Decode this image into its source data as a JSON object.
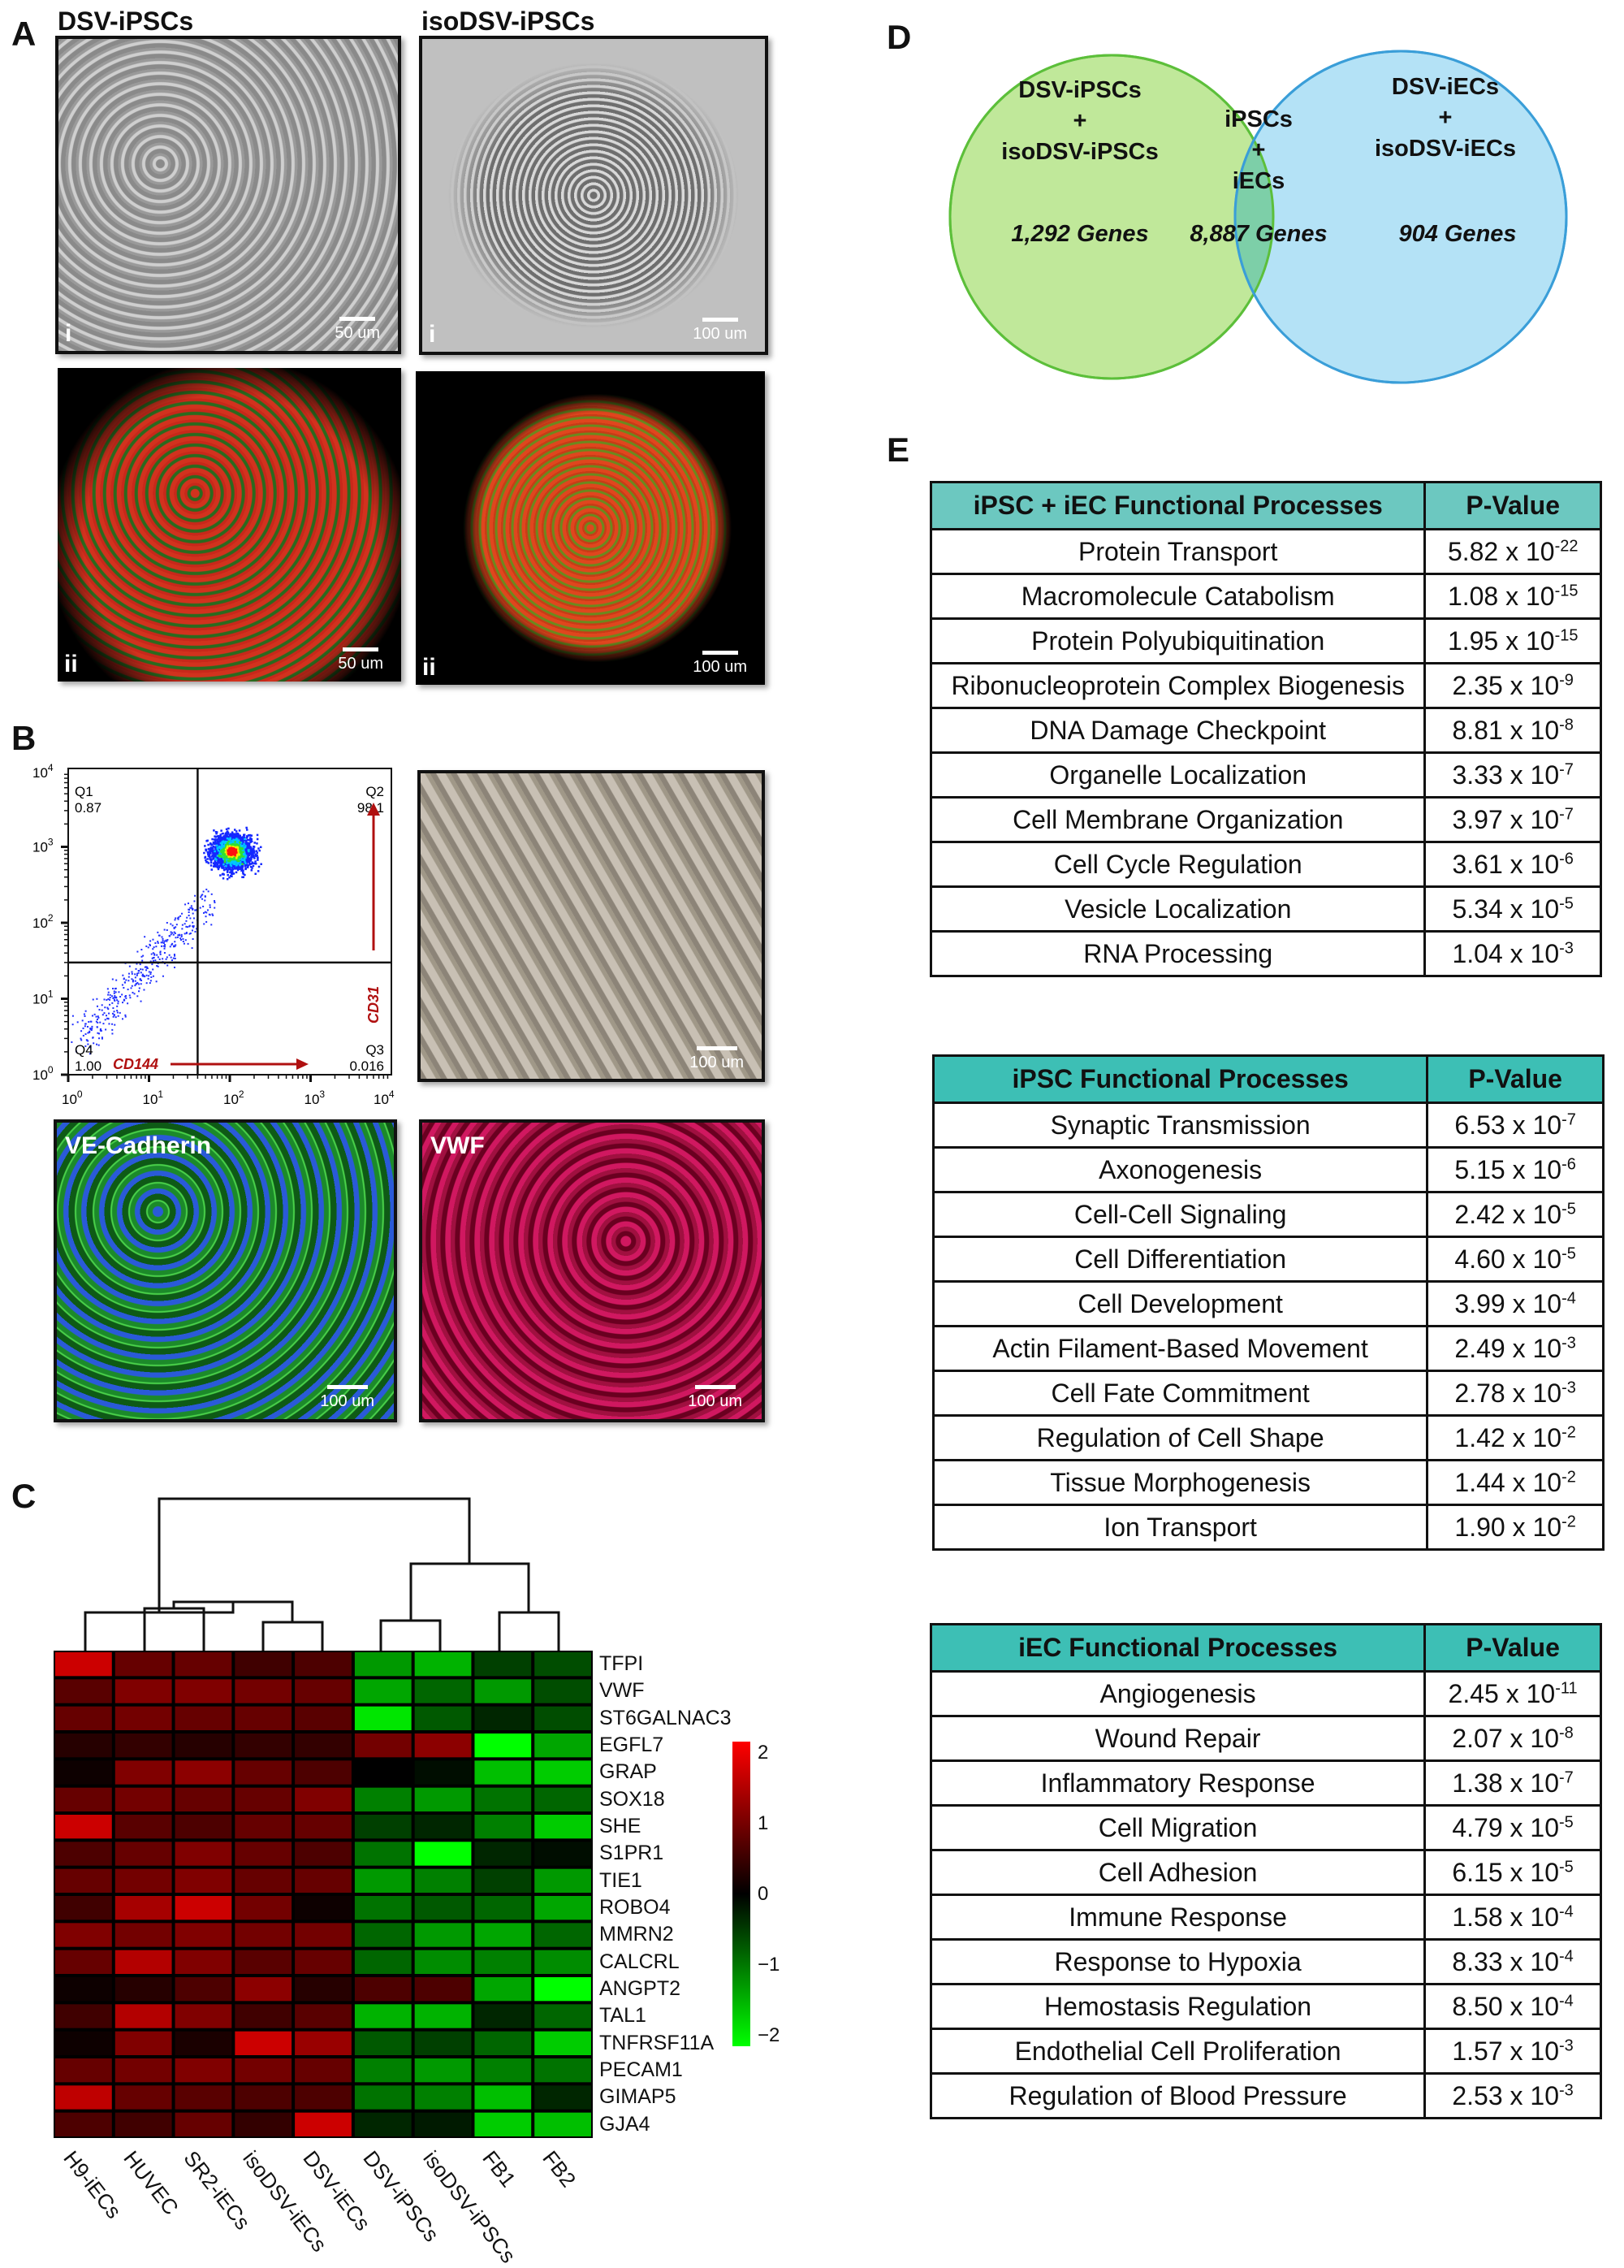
{
  "panelA": {
    "letter": "A",
    "col_titles": [
      "DSV-iPSCs",
      "isoDSV-iPSCs"
    ],
    "images": [
      {
        "label": "i",
        "scale": "50 um"
      },
      {
        "label": "i",
        "scale": "100 um"
      },
      {
        "label": "ii",
        "scale": "50 um"
      },
      {
        "label": "ii",
        "scale": "100 um"
      }
    ]
  },
  "panelB": {
    "letter": "B",
    "images": [
      {
        "label": "",
        "scale": "100 um"
      },
      {
        "label": "VE-Cadherin",
        "scale": "100 um"
      },
      {
        "label": "VWF",
        "scale": "100 um"
      }
    ]
  },
  "panelC": {
    "letter": "C"
  },
  "panelD": {
    "letter": "D",
    "left": {
      "line1": "DSV-iPSCs",
      "line2": "+",
      "line3": "isoDSV-iPSCs",
      "genes": "1,292 Genes",
      "color": "#c0e89a"
    },
    "middle": {
      "line1": "iPSCs",
      "line2": "+",
      "line3": "iECs",
      "genes": "8,887 Genes",
      "color": "#7dcfa8"
    },
    "right": {
      "line1": "DSV-iECs",
      "line2": "+",
      "line3": "isoDSV-iECs",
      "genes": "904 Genes",
      "color": "#b4e2f6"
    }
  },
  "panelE": {
    "letter": "E",
    "tables": [
      {
        "header": [
          "iPSC + iEC Functional Processes",
          "P-Value"
        ],
        "header_color": "#6cc8c0",
        "rows": [
          {
            "process": "Protein Transport",
            "mant": "5.82 x 10",
            "exp": "-22"
          },
          {
            "process": "Macromolecule Catabolism",
            "mant": "1.08 x 10",
            "exp": "-15"
          },
          {
            "process": "Protein Polyubiquitination",
            "mant": "1.95 x 10",
            "exp": "-15"
          },
          {
            "process": "Ribonucleoprotein Complex Biogenesis",
            "mant": "2.35 x 10",
            "exp": "-9"
          },
          {
            "process": "DNA Damage Checkpoint",
            "mant": "8.81 x 10",
            "exp": "-8"
          },
          {
            "process": "Organelle Localization",
            "mant": "3.33 x 10",
            "exp": "-7"
          },
          {
            "process": "Cell Membrane Organization",
            "mant": "3.97 x 10",
            "exp": "-7"
          },
          {
            "process": "Cell Cycle Regulation",
            "mant": "3.61 x 10",
            "exp": "-6"
          },
          {
            "process": "Vesicle Localization",
            "mant": "5.34 x 10",
            "exp": "-5"
          },
          {
            "process": "RNA Processing",
            "mant": "1.04 x 10",
            "exp": "-3"
          }
        ]
      },
      {
        "header": [
          "iPSC Functional Processes",
          "P-Value"
        ],
        "header_color": "#3dbfb5",
        "rows": [
          {
            "process": "Synaptic Transmission",
            "mant": "6.53 x 10",
            "exp": "-7"
          },
          {
            "process": "Axonogenesis",
            "mant": "5.15 x 10",
            "exp": "-6"
          },
          {
            "process": "Cell-Cell Signaling",
            "mant": "2.42 x 10",
            "exp": "-5"
          },
          {
            "process": "Cell Differentiation",
            "mant": "4.60 x 10",
            "exp": "-5"
          },
          {
            "process": "Cell Development",
            "mant": "3.99 x 10",
            "exp": "-4"
          },
          {
            "process": "Actin Filament-Based Movement",
            "mant": "2.49 x 10",
            "exp": "-3"
          },
          {
            "process": "Cell Fate Commitment",
            "mant": "2.78 x 10",
            "exp": "-3"
          },
          {
            "process": "Regulation of Cell Shape",
            "mant": "1.42 x 10",
            "exp": "-2"
          },
          {
            "process": "Tissue Morphogenesis",
            "mant": "1.44 x 10",
            "exp": "-2"
          },
          {
            "process": "Ion Transport",
            "mant": "1.90 x 10",
            "exp": "-2"
          }
        ]
      },
      {
        "header": [
          "iEC Functional Processes",
          "P-Value"
        ],
        "header_color": "#3dbfb5",
        "rows": [
          {
            "process": "Angiogenesis",
            "mant": "2.45 x 10",
            "exp": "-11"
          },
          {
            "process": "Wound Repair",
            "mant": "2.07 x 10",
            "exp": "-8"
          },
          {
            "process": "Inflammatory Response",
            "mant": "1.38 x 10",
            "exp": "-7"
          },
          {
            "process": "Cell Migration",
            "mant": "4.79 x 10",
            "exp": "-5"
          },
          {
            "process": "Cell Adhesion",
            "mant": "6.15 x 10",
            "exp": "-5"
          },
          {
            "process": "Immune Response",
            "mant": "1.58 x 10",
            "exp": "-4"
          },
          {
            "process": "Response to Hypoxia",
            "mant": "8.33 x 10",
            "exp": "-4"
          },
          {
            "process": "Hemostasis Regulation",
            "mant": "8.50 x 10",
            "exp": "-4"
          },
          {
            "process": "Endothelial Cell Proliferation",
            "mant": "1.57 x 10",
            "exp": "-3"
          },
          {
            "process": "Regulation of Blood Pressure",
            "mant": "2.53 x 10",
            "exp": "-3"
          }
        ]
      }
    ]
  },
  "chart_data": [
    {
      "type": "scatter",
      "panel": "B",
      "xlabel": "CD144",
      "ylabel": "CD31",
      "x_scale": "log",
      "y_scale": "log",
      "xlim": [
        1,
        10000
      ],
      "ylim": [
        1,
        10000
      ],
      "x_ticks": [
        {
          "base": "10",
          "exp": "0"
        },
        {
          "base": "10",
          "exp": "1"
        },
        {
          "base": "10",
          "exp": "2"
        },
        {
          "base": "10",
          "exp": "3"
        },
        {
          "base": "10",
          "exp": "4"
        }
      ],
      "y_ticks": [
        {
          "base": "10",
          "exp": "0"
        },
        {
          "base": "10",
          "exp": "1"
        },
        {
          "base": "10",
          "exp": "2"
        },
        {
          "base": "10",
          "exp": "3"
        },
        {
          "base": "10",
          "exp": "4"
        }
      ],
      "gate": {
        "x": 40,
        "y": 30
      },
      "quadrants": [
        {
          "name": "Q1",
          "value": "0.87"
        },
        {
          "name": "Q2",
          "value": "98.1"
        },
        {
          "name": "Q3",
          "value": "0.016"
        },
        {
          "name": "Q4",
          "value": "1.00"
        }
      ],
      "axis_color": "#b01010"
    },
    {
      "type": "heatmap",
      "panel": "C",
      "columns": [
        "H9-iECs",
        "HUVEC",
        "SR2-iECs",
        "isoDSV-iECs",
        "DSV-iECs",
        "DSV-iPSCs",
        "isoDSV-iPSCs",
        "FB1",
        "FB2"
      ],
      "rows": [
        "TFPI",
        "VWF",
        "ST6GALNAC3",
        "EGFL7",
        "GRAP",
        "SOX18",
        "SHE",
        "S1PR1",
        "TIE1",
        "ROBO4",
        "MMRN2",
        "CALCRL",
        "ANGPT2",
        "TAL1",
        "TNFRSF11A",
        "PECAM1",
        "GIMAP5",
        "GJA4"
      ],
      "values": [
        [
          1.6,
          0.8,
          0.8,
          0.5,
          0.6,
          -1.2,
          -1.4,
          -0.5,
          -0.6
        ],
        [
          0.7,
          1.0,
          1.0,
          0.9,
          0.8,
          -1.3,
          -0.8,
          -1.2,
          -0.6
        ],
        [
          0.8,
          0.9,
          0.8,
          0.8,
          0.7,
          -1.8,
          -0.7,
          -0.3,
          -0.6
        ],
        [
          0.3,
          0.4,
          0.3,
          0.4,
          0.4,
          0.9,
          1.1,
          -2.0,
          -1.3
        ],
        [
          0.1,
          1.0,
          1.1,
          0.8,
          0.6,
          0.0,
          -0.1,
          -1.5,
          -1.6
        ],
        [
          0.8,
          0.9,
          0.8,
          0.8,
          1.0,
          -1.0,
          -1.2,
          -0.9,
          -0.8
        ],
        [
          1.6,
          0.7,
          0.6,
          0.8,
          0.8,
          -0.5,
          -0.3,
          -1.0,
          -1.6
        ],
        [
          0.6,
          0.8,
          1.0,
          0.8,
          0.6,
          -0.9,
          -2.0,
          -0.3,
          -0.1
        ],
        [
          0.8,
          0.9,
          1.0,
          0.8,
          0.8,
          -1.2,
          -1.0,
          -0.5,
          -1.2
        ],
        [
          0.5,
          1.3,
          1.6,
          0.9,
          0.1,
          -0.9,
          -0.7,
          -0.8,
          -1.3
        ],
        [
          1.0,
          0.9,
          1.0,
          0.9,
          0.9,
          -0.8,
          -1.2,
          -1.3,
          -0.8
        ],
        [
          0.8,
          1.4,
          1.0,
          0.7,
          0.8,
          -0.8,
          -1.1,
          -1.0,
          -1.1
        ],
        [
          0.1,
          0.3,
          0.6,
          1.1,
          0.3,
          0.6,
          0.6,
          -1.3,
          -2.0
        ],
        [
          0.5,
          1.4,
          1.0,
          0.5,
          0.7,
          -1.4,
          -1.4,
          -0.3,
          -0.8
        ],
        [
          0.1,
          1.0,
          0.2,
          1.6,
          1.2,
          -0.7,
          -0.5,
          -0.8,
          -1.6
        ],
        [
          0.8,
          0.9,
          1.0,
          0.9,
          0.8,
          -1.0,
          -1.2,
          -1.0,
          -0.9
        ],
        [
          1.5,
          0.8,
          0.7,
          0.6,
          0.6,
          -0.9,
          -1.0,
          -1.5,
          -0.3
        ],
        [
          0.6,
          0.5,
          0.8,
          0.4,
          1.6,
          -0.3,
          -0.2,
          -1.6,
          -1.5
        ]
      ],
      "colorbar": {
        "min": -2,
        "max": 2,
        "ticks": [
          "2",
          "1",
          "0",
          "−1",
          "−2"
        ],
        "low_color": "#00ff00",
        "mid_color": "#000000",
        "high_color": "#ff0000"
      },
      "dendrogram": "hierarchical clustering of columns"
    }
  ]
}
